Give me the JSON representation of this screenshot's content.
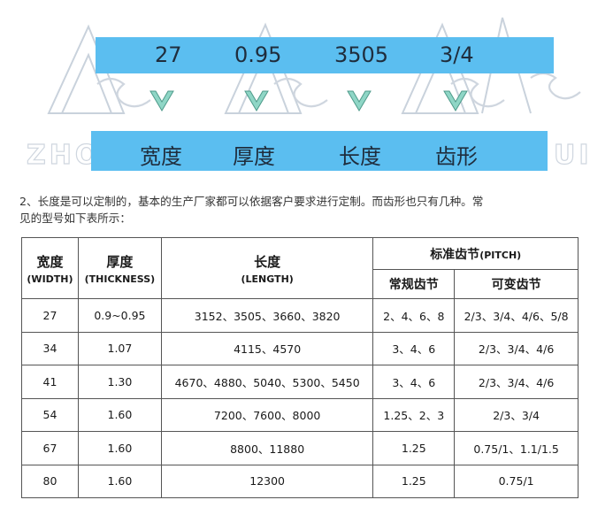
{
  "banner": {
    "watermark_left": "ZHO",
    "watermark_right": "UI",
    "specs": [
      {
        "value": "27",
        "label": "宽度"
      },
      {
        "value": "0.95",
        "label": "厚度"
      },
      {
        "value": "3505",
        "label": "长度"
      },
      {
        "value": "3/4",
        "label": "齿形"
      }
    ],
    "band_color": "#5bbef0",
    "chevron_color": "#8fd6c6"
  },
  "paragraph": {
    "line1": "2、长度是可以定制的，基本的生产厂家都可以依据客户要求进行定制。而齿形也只有几种。常",
    "line2": "见的型号如下表所示："
  },
  "table": {
    "headers": {
      "width_cn": "宽度",
      "width_en": "(WIDTH)",
      "thickness_cn": "厚度",
      "thickness_en": "(THICKNESS)",
      "length_cn": "长度",
      "length_en": "(LENGTH)",
      "pitch_cn": "标准齿节",
      "pitch_en": "(PITCH)",
      "regular_cn": "常规齿节",
      "variable_cn": "可变齿节"
    },
    "rows": [
      {
        "width": "27",
        "thickness": "0.9~0.95",
        "length": "3152、3505、3660、3820",
        "regular": "2、4、6、8",
        "variable": "2/3、3/4、4/6、5/8"
      },
      {
        "width": "34",
        "thickness": "1.07",
        "length": "4115、4570",
        "regular": "3、4、6",
        "variable": "2/3、3/4、4/6"
      },
      {
        "width": "41",
        "thickness": "1.30",
        "length": "4670、4880、5040、5300、5450",
        "regular": "3、4、6",
        "variable": "2/3、3/4、4/6"
      },
      {
        "width": "54",
        "thickness": "1.60",
        "length": "7200、7600、8000",
        "regular": "1.25、2、3",
        "variable": "2/3、3/4"
      },
      {
        "width": "67",
        "thickness": "1.60",
        "length": "8800、11880",
        "regular": "1.25",
        "variable": "0.75/1、1.1/1.5"
      },
      {
        "width": "80",
        "thickness": "1.60",
        "length": "12300",
        "regular": "1.25",
        "variable": "0.75/1"
      }
    ]
  }
}
